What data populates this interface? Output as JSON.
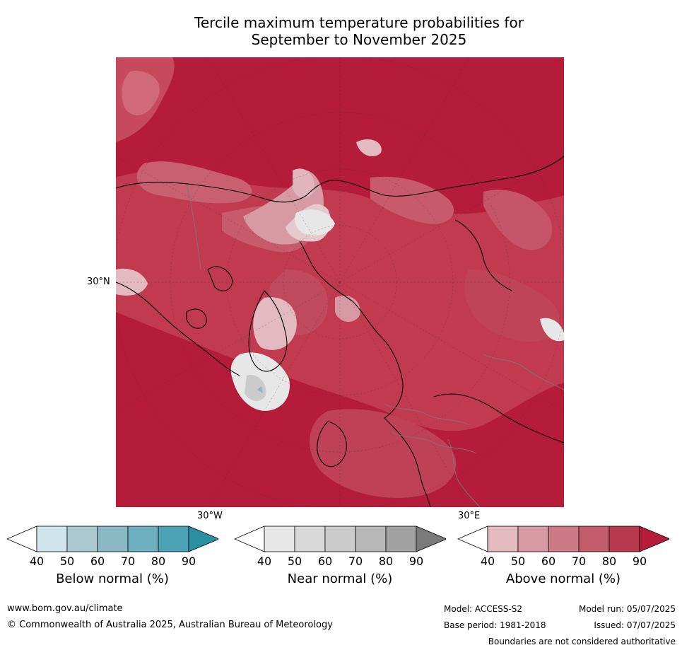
{
  "title_line1": "Tercile maximum temperature probabilities for",
  "title_line2": "September to November 2025",
  "map": {
    "tick_labels": {
      "lat_left": "30°N",
      "lon_bottom_left": "30°W",
      "lon_bottom_right": "30°E"
    }
  },
  "colorbars": [
    {
      "label": "Below normal (%)",
      "ticks": [
        "40",
        "50",
        "60",
        "70",
        "80",
        "90"
      ],
      "colors": [
        "#cfe5eb",
        "#a9c8d0",
        "#8bb8c5",
        "#6daebf",
        "#4aa2b4",
        "#2c8ea2"
      ]
    },
    {
      "label": "Near normal (%)",
      "ticks": [
        "40",
        "50",
        "60",
        "70",
        "80",
        "90"
      ],
      "colors": [
        "#e7e7e7",
        "#d9d9d9",
        "#cbcbcb",
        "#b8b8b8",
        "#a1a1a1",
        "#7a7a7a"
      ]
    },
    {
      "label": "Above normal (%)",
      "ticks": [
        "40",
        "50",
        "60",
        "70",
        "80",
        "90"
      ],
      "colors": [
        "#e2babf",
        "#d89aa2",
        "#cc7b86",
        "#c15c6a",
        "#b8394e",
        "#b41c3a"
      ]
    }
  ],
  "footer": {
    "website": "www.bom.gov.au/climate",
    "copyright": "© Commonwealth of Australia 2025, Australian Bureau of Meteorology",
    "model": "Model: ACCESS-S2",
    "base_period": "Base period: 1981-2018",
    "model_run": "Model run: 05/07/2025",
    "issued": "Issued: 07/07/2025",
    "disclaimer": "Boundaries are not considered authoritative"
  }
}
